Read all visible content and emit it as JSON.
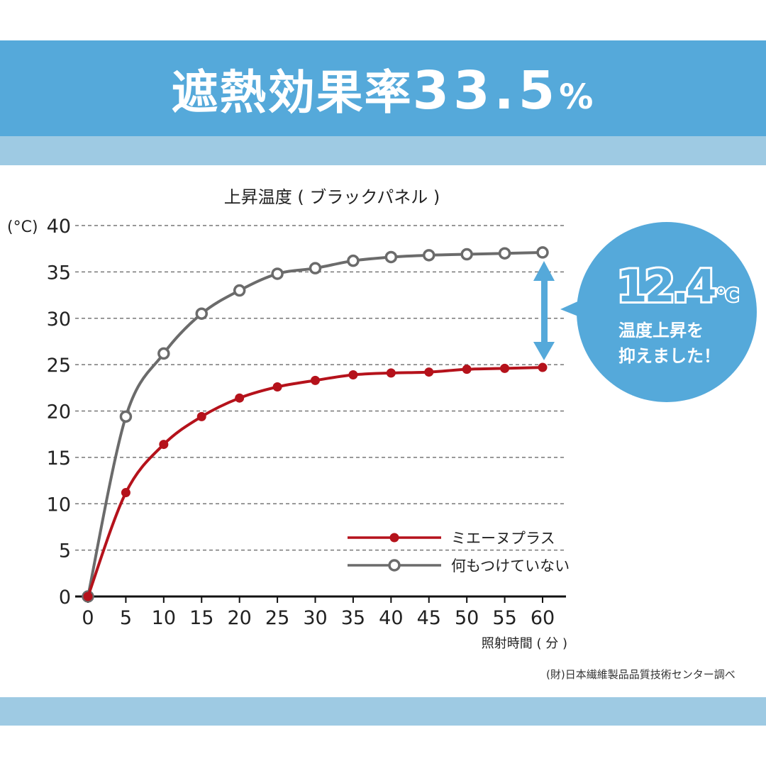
{
  "header": {
    "title_text": "遮熱効果率",
    "title_value": "33.5",
    "title_unit": "%"
  },
  "callout": {
    "value": "12.4",
    "unit": "℃",
    "line1": "温度上昇を",
    "line2": "抑えました！",
    "color": "#55a9da"
  },
  "footnote": "(財)日本繊維製品品質技術センター調べ",
  "chart_data": {
    "type": "line",
    "title": "上昇温度 ( ブラックパネル )",
    "ylabel": "(°C)",
    "xlabel": "照射時間 ( 分 )",
    "x": [
      0,
      5,
      10,
      15,
      20,
      25,
      30,
      35,
      40,
      45,
      50,
      55,
      60
    ],
    "xlim": [
      0,
      60
    ],
    "ylim": [
      0,
      40
    ],
    "yticks": [
      0,
      5,
      10,
      15,
      20,
      25,
      30,
      35,
      40
    ],
    "grid": "horizontal dashed",
    "legend_position": "bottom-right",
    "series": [
      {
        "name": "ミエーヌプラス",
        "color": "#b5121b",
        "marker": "filled-circle",
        "values": [
          0,
          11.2,
          16.4,
          19.4,
          21.4,
          22.6,
          23.3,
          23.9,
          24.1,
          24.2,
          24.5,
          24.6,
          24.7
        ]
      },
      {
        "name": "何もつけていない",
        "color": "#6b6b6b",
        "marker": "open-circle",
        "values": [
          0,
          19.4,
          26.2,
          30.5,
          33.0,
          34.8,
          35.4,
          36.2,
          36.6,
          36.8,
          36.9,
          37.0,
          37.1
        ]
      }
    ]
  }
}
